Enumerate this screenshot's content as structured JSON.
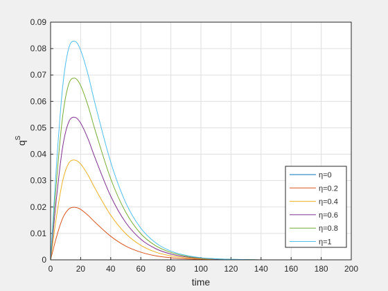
{
  "chart_data": {
    "type": "line",
    "title": "",
    "xlabel": "time",
    "ylabel": "q",
    "ylabel_sup": "S",
    "xlim": [
      0,
      200
    ],
    "ylim": [
      0,
      0.09
    ],
    "xticks": [
      "0",
      "20",
      "40",
      "60",
      "80",
      "100",
      "120",
      "140",
      "160",
      "180",
      "200"
    ],
    "yticks": [
      "0",
      "0.01",
      "0.02",
      "0.03",
      "0.04",
      "0.05",
      "0.06",
      "0.07",
      "0.08",
      "0.09"
    ],
    "grid": true,
    "legend_position": "bottom-right",
    "x": [
      0,
      4,
      8,
      12,
      16,
      20,
      25,
      30,
      40,
      50,
      60,
      70,
      80,
      90,
      100,
      110,
      120,
      140,
      160,
      180,
      200
    ],
    "series": [
      {
        "name": "η=0",
        "color": "#0072BD",
        "values": [
          0,
          0,
          0,
          0,
          0,
          0,
          0,
          0,
          0,
          0,
          0,
          0,
          0,
          0,
          0,
          0,
          0,
          0,
          0,
          0,
          0
        ]
      },
      {
        "name": "η=0.2",
        "color": "#D95319",
        "values": [
          0,
          0.0088,
          0.0157,
          0.0192,
          0.0199,
          0.0191,
          0.0168,
          0.014,
          0.0089,
          0.0052,
          0.0029,
          0.0015,
          0.0008,
          0.0004,
          0.0002,
          0.0001,
          5e-05,
          0,
          0,
          0,
          0
        ]
      },
      {
        "name": "η=0.4",
        "color": "#EDB120",
        "values": [
          0,
          0.0167,
          0.0298,
          0.0365,
          0.0378,
          0.0363,
          0.032,
          0.0266,
          0.0169,
          0.0099,
          0.0055,
          0.0029,
          0.0015,
          0.0008,
          0.0004,
          0.0002,
          0.0001,
          0,
          0,
          0,
          0
        ]
      },
      {
        "name": "η=0.6",
        "color": "#7E2F8E",
        "values": [
          0,
          0.0238,
          0.0426,
          0.0521,
          0.054,
          0.0518,
          0.0457,
          0.038,
          0.0241,
          0.0141,
          0.0078,
          0.0042,
          0.0022,
          0.0011,
          0.0006,
          0.0003,
          0.0001,
          0,
          0,
          0,
          0
        ]
      },
      {
        "name": "η=0.8",
        "color": "#77AC30",
        "values": [
          0,
          0.0303,
          0.0542,
          0.0664,
          0.0688,
          0.066,
          0.0582,
          0.0484,
          0.0307,
          0.018,
          0.0099,
          0.0053,
          0.0028,
          0.0014,
          0.0007,
          0.0004,
          0.0002,
          0,
          0,
          0,
          0
        ]
      },
      {
        "name": "η=1",
        "color": "#4DBEEE",
        "values": [
          0,
          0.0365,
          0.0653,
          0.08,
          0.0828,
          0.0794,
          0.07,
          0.0582,
          0.037,
          0.0216,
          0.012,
          0.0064,
          0.0033,
          0.0017,
          0.0008,
          0.0004,
          0.0002,
          0,
          0,
          0,
          0
        ]
      }
    ]
  }
}
